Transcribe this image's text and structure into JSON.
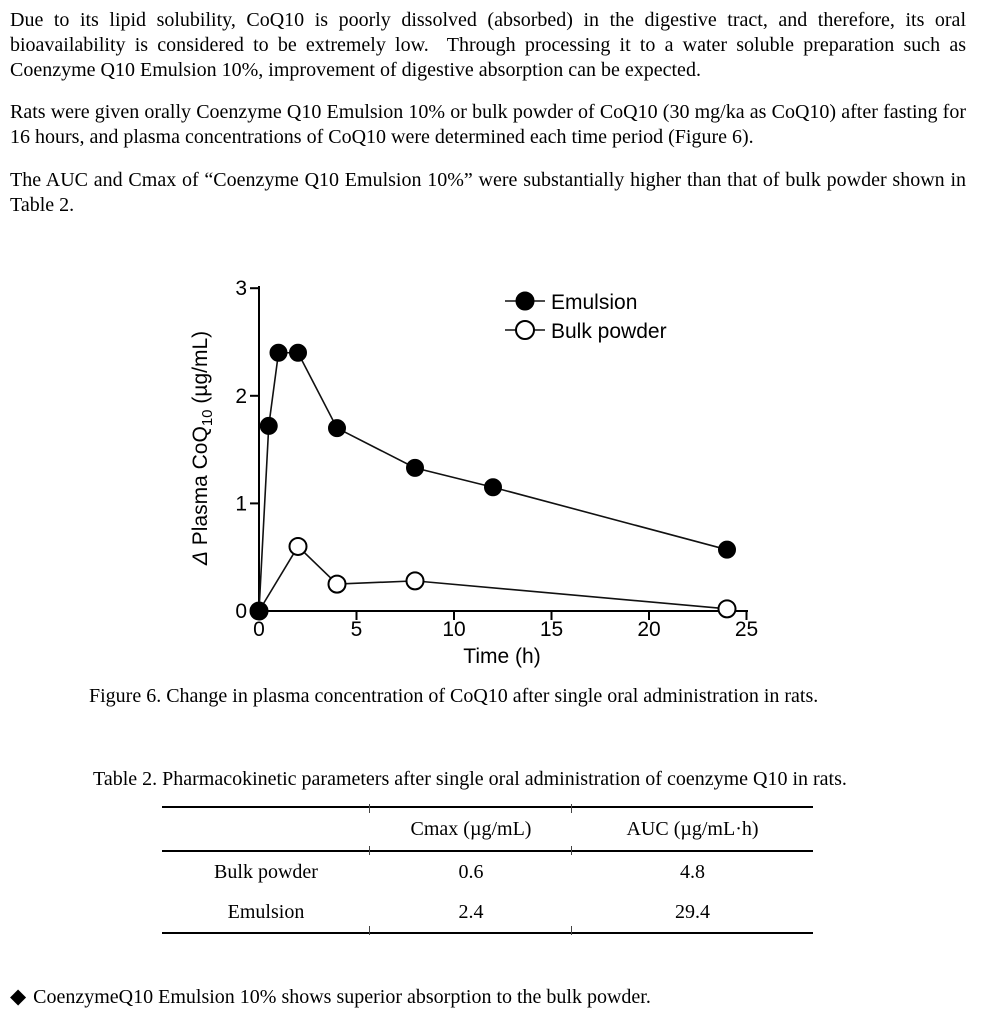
{
  "page": {
    "paragraphs": [
      "Due to its lipid solubility, CoQ10 is poorly dissolved (absorbed) in the digestive tract, and therefore, its oral bioavailability is considered to be extremely low.  Through processing it to a water soluble preparation such as Coenzyme Q10 Emulsion 10%, improvement of digestive absorption can be expected.",
      "Rats were given orally Coenzyme Q10 Emulsion 10% or bulk powder of CoQ10 (30 mg/ka as CoQ10) after fasting for 16 hours, and plasma concentrations of CoQ10 were determined each time period (Figure 6).",
      "The AUC and Cmax of “Coenzyme Q10 Emulsion 10%” were substantially higher than that of bulk powder shown in Table 2."
    ],
    "figure_caption": "Figure 6. Change in plasma concentration of CoQ10 after single oral administration in rats.",
    "table": {
      "caption": "Table 2. Pharmacokinetic parameters after single oral administration of coenzyme Q10 in rats.",
      "headers": [
        "",
        "Cmax (µg/mL)",
        "AUC (µg/mL·h)"
      ],
      "rows": [
        [
          "Bulk powder",
          "0.6",
          "4.8"
        ],
        [
          "Emulsion",
          "2.4",
          "29.4"
        ]
      ]
    },
    "conclusion": {
      "bullet": "◆",
      "text": "CoenzymeQ10 Emulsion 10% shows superior absorption to the bulk powder."
    },
    "colors": {
      "text": "#000000",
      "background": "#ffffff",
      "chart_line": "#111111"
    }
  },
  "chart_data": {
    "type": "line",
    "title": "",
    "xlabel": "Time (h)",
    "ylabel": "Δ Plasma CoQ10 (µg/mL)",
    "ylabel_parts": {
      "delta": "Δ",
      "pre": " Plasma CoQ",
      "sub": "10",
      "post": " (µg/mL)"
    },
    "xlim": [
      0,
      25
    ],
    "ylim": [
      0,
      3
    ],
    "xticks": [
      0,
      5,
      10,
      15,
      20,
      25
    ],
    "yticks": [
      0,
      1,
      2,
      3
    ],
    "grid": false,
    "legend_position": "upper-right-inside",
    "series": [
      {
        "name": "Emulsion",
        "marker": "filled-circle",
        "x": [
          0,
          0.5,
          1,
          2,
          4,
          8,
          12,
          24
        ],
        "y": [
          0,
          1.72,
          2.4,
          2.4,
          1.7,
          1.33,
          1.15,
          0.57
        ]
      },
      {
        "name": "Bulk powder",
        "marker": "open-circle",
        "x": [
          0,
          2,
          4,
          8,
          24
        ],
        "y": [
          0,
          0.6,
          0.25,
          0.28,
          0.02
        ]
      }
    ]
  }
}
